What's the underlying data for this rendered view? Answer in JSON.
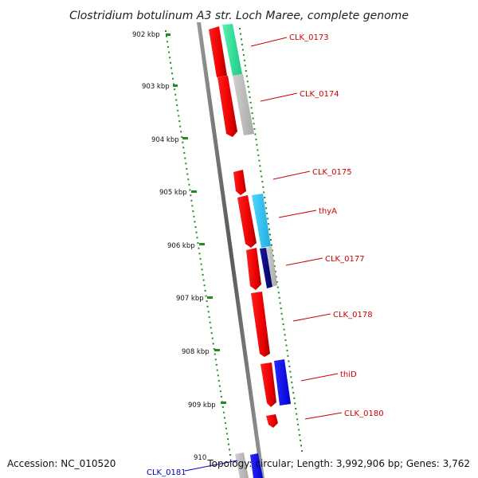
{
  "title": "Clostridium botulinum A3 str. Loch Maree, complete genome",
  "footer": {
    "accession": "Accession: NC_010520",
    "summary": "Topology: circular; Length: 3,992,906 bp; Genes: 3,762"
  },
  "ticks": [
    {
      "label": "902 kbp",
      "kbp": 902
    },
    {
      "label": "903 kbp",
      "kbp": 903
    },
    {
      "label": "904 kbp",
      "kbp": 904
    },
    {
      "label": "905 kbp",
      "kbp": 905
    },
    {
      "label": "906 kbp",
      "kbp": 906
    },
    {
      "label": "907 kbp",
      "kbp": 907
    },
    {
      "label": "908 kbp",
      "kbp": 908
    },
    {
      "label": "909 kbp",
      "kbp": 909
    },
    {
      "label": "910",
      "kbp": 910
    }
  ],
  "genes": [
    {
      "name": "CLK_0173",
      "color": "#cc0000"
    },
    {
      "name": "CLK_0174",
      "color": "#cc0000"
    },
    {
      "name": "CLK_0175",
      "color": "#cc0000"
    },
    {
      "name": "thyA",
      "color": "#cc0000"
    },
    {
      "name": "CLK_0177",
      "color": "#cc0000"
    },
    {
      "name": "CLK_0178",
      "color": "#cc0000"
    },
    {
      "name": "thiD",
      "color": "#cc0000"
    },
    {
      "name": "CLK_0180",
      "color": "#cc0000"
    },
    {
      "name": "CLK_0181",
      "color": "#0000bb"
    }
  ],
  "colors": {
    "cds": "#ff0000",
    "backbone": "#808080",
    "tick": "#228b22",
    "cog_green": "#33e6a0",
    "cog_gray": "#c0c0c0",
    "cog_cyan": "#33c6f2",
    "cog_navy": "#000080",
    "cog_blue": "#0000ff"
  }
}
